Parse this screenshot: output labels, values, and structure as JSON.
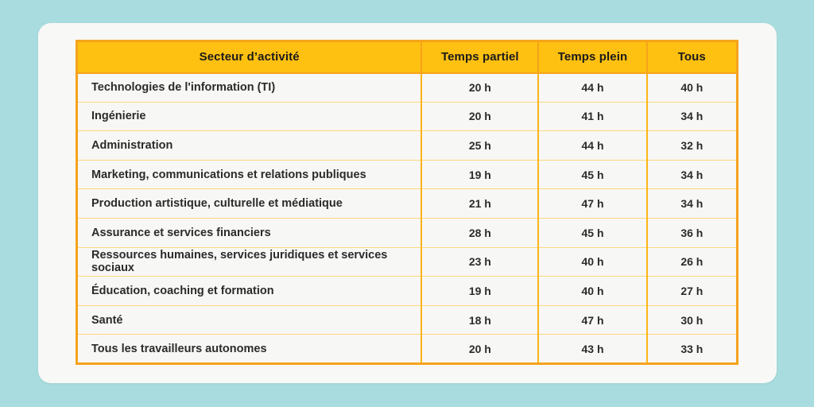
{
  "page": {
    "background_color": "#a8dcde",
    "card_background_color": "#f8f8f6"
  },
  "table": {
    "header_background_color": "#fec011",
    "outer_border_color": "#f5a31c",
    "column_divider_color": "#fbb515",
    "row_divider_color": "#fcd77d",
    "text_color": "#2b2b2b",
    "headers": {
      "sector": "Secteur d’activité",
      "part_time": "Temps partiel",
      "full_time": "Temps plein",
      "all": "Tous"
    },
    "rows": [
      {
        "label": "Technologies de l'information (TI)",
        "part_time": "20 h",
        "full_time": "44 h",
        "all": "40 h",
        "bold": false
      },
      {
        "label": "Ingénierie",
        "part_time": "20 h",
        "full_time": "41 h",
        "all": "34 h",
        "bold": false
      },
      {
        "label": "Administration",
        "part_time": "25 h",
        "full_time": "44 h",
        "all": "32 h",
        "bold": false
      },
      {
        "label": "Marketing, communications et relations publiques",
        "part_time": "19 h",
        "full_time": "45 h",
        "all": "34 h",
        "bold": false
      },
      {
        "label": "Production artistique, culturelle et médiatique",
        "part_time": "21 h",
        "full_time": "47 h",
        "all": "34 h",
        "bold": false
      },
      {
        "label": "Assurance et services financiers",
        "part_time": "28 h",
        "full_time": "45 h",
        "all": "36 h",
        "bold": false
      },
      {
        "label": "Ressources humaines, services juridiques et services sociaux",
        "part_time": "23 h",
        "full_time": "40 h",
        "all": "26 h",
        "bold": false
      },
      {
        "label": "Éducation, coaching et formation",
        "part_time": "19 h",
        "full_time": "40 h",
        "all": "27 h",
        "bold": false
      },
      {
        "label": "Santé",
        "part_time": "18 h",
        "full_time": "47 h",
        "all": "30 h",
        "bold": false
      },
      {
        "label": "Tous les travailleurs autonomes",
        "part_time": "20 h",
        "full_time": "43 h",
        "all": "33 h",
        "bold": true
      }
    ]
  },
  "chart_data": {
    "type": "table",
    "title": "",
    "columns": [
      "Secteur d’activité",
      "Temps partiel",
      "Temps plein",
      "Tous"
    ],
    "unit": "h",
    "rows": [
      {
        "secteur": "Technologies de l'information (TI)",
        "temps_partiel": 20,
        "temps_plein": 44,
        "tous": 40
      },
      {
        "secteur": "Ingénierie",
        "temps_partiel": 20,
        "temps_plein": 41,
        "tous": 34
      },
      {
        "secteur": "Administration",
        "temps_partiel": 25,
        "temps_plein": 44,
        "tous": 32
      },
      {
        "secteur": "Marketing, communications et relations publiques",
        "temps_partiel": 19,
        "temps_plein": 45,
        "tous": 34
      },
      {
        "secteur": "Production artistique, culturelle et médiatique",
        "temps_partiel": 21,
        "temps_plein": 47,
        "tous": 34
      },
      {
        "secteur": "Assurance et services financiers",
        "temps_partiel": 28,
        "temps_plein": 45,
        "tous": 36
      },
      {
        "secteur": "Ressources humaines, services juridiques et services sociaux",
        "temps_partiel": 23,
        "temps_plein": 40,
        "tous": 26
      },
      {
        "secteur": "Éducation, coaching et formation",
        "temps_partiel": 19,
        "temps_plein": 40,
        "tous": 27
      },
      {
        "secteur": "Santé",
        "temps_partiel": 18,
        "temps_plein": 47,
        "tous": 30
      },
      {
        "secteur": "Tous les travailleurs autonomes",
        "temps_partiel": 20,
        "temps_plein": 43,
        "tous": 33
      }
    ]
  }
}
